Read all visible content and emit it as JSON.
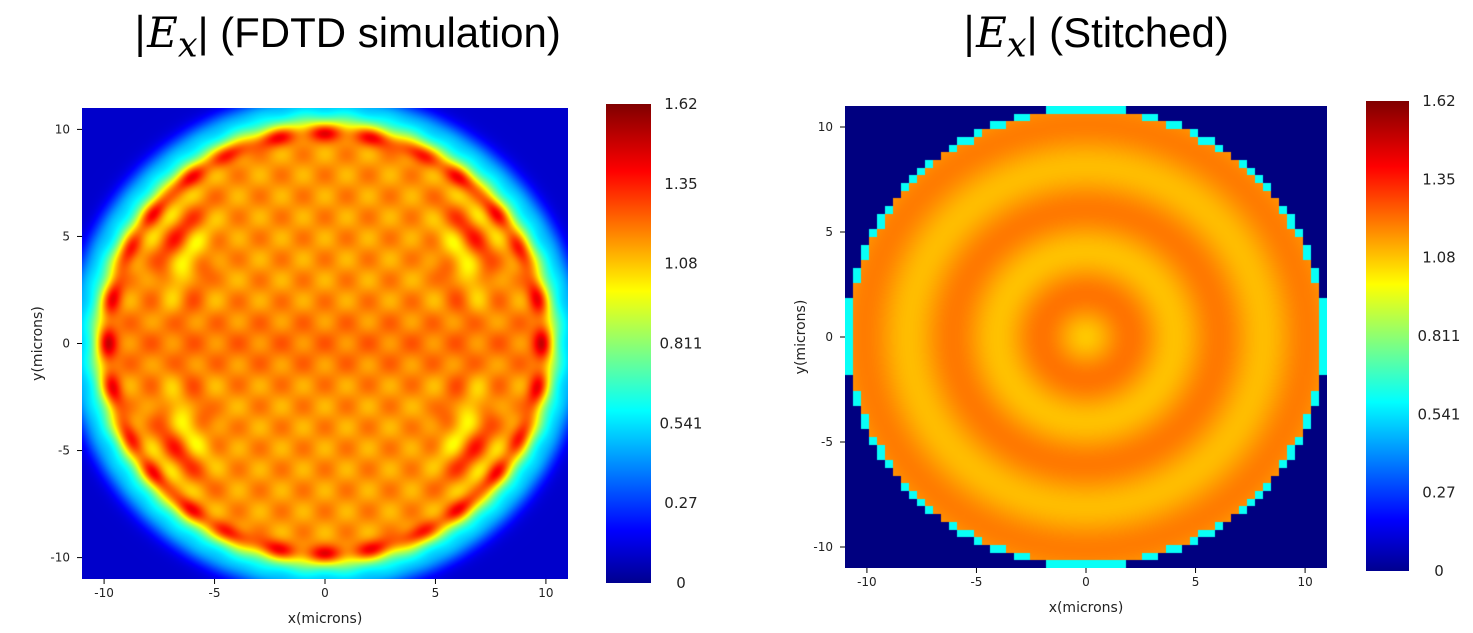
{
  "chart_data": [
    {
      "type": "heatmap",
      "title_math": "|E",
      "title_sub": "x",
      "title_rest": "| (FDTD simulation)",
      "xlabel": "x(microns)",
      "ylabel": "y(microns)",
      "xlim": [
        -11,
        11
      ],
      "ylim": [
        -11,
        11
      ],
      "xticks": [
        -10,
        -5,
        0,
        5,
        10
      ],
      "yticks": [
        -10,
        -5,
        0,
        5,
        10
      ],
      "colorbar": {
        "colormap": "jet",
        "range": [
          0,
          1.62
        ],
        "ticks": [
          "1.62",
          "1.35",
          "1.08",
          "0.811",
          "0.541",
          "0.27",
          "0"
        ]
      },
      "pattern": "circular aperture of radius ~10.5 microns, field magnitude ~1.2 inside with ~1.55 ripples near the edge, ~0.1 background"
    },
    {
      "type": "heatmap",
      "title_math": "|E",
      "title_sub": "x",
      "title_rest": "| (Stitched)",
      "xlabel": "x(microns)",
      "ylabel": "y(microns)",
      "xlim": [
        -11,
        11
      ],
      "ylim": [
        -11,
        11
      ],
      "xticks": [
        -10,
        -5,
        0,
        5,
        10
      ],
      "yticks": [
        -10,
        -5,
        0,
        5,
        10
      ],
      "colorbar": {
        "colormap": "jet",
        "range": [
          0,
          1.62
        ],
        "ticks": [
          "1.62",
          "1.35",
          "1.08",
          "0.811",
          "0.541",
          "0.27",
          "0"
        ]
      },
      "pattern": "pixelated circular aperture of radius ~11 microns, concentric rings oscillating 1.1-1.25, 0 background"
    }
  ],
  "colors": {
    "background": "#ffffff",
    "axis": "#000000"
  }
}
